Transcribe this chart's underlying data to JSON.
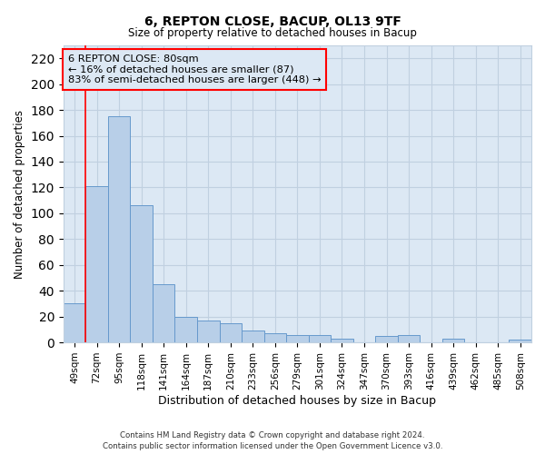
{
  "title": "6, REPTON CLOSE, BACUP, OL13 9TF",
  "subtitle": "Size of property relative to detached houses in Bacup",
  "xlabel": "Distribution of detached houses by size in Bacup",
  "ylabel": "Number of detached properties",
  "bar_labels": [
    "49sqm",
    "72sqm",
    "95sqm",
    "118sqm",
    "141sqm",
    "164sqm",
    "187sqm",
    "210sqm",
    "233sqm",
    "256sqm",
    "279sqm",
    "301sqm",
    "324sqm",
    "347sqm",
    "370sqm",
    "393sqm",
    "416sqm",
    "439sqm",
    "462sqm",
    "485sqm",
    "508sqm"
  ],
  "bar_values": [
    30,
    121,
    175,
    106,
    45,
    20,
    17,
    15,
    9,
    7,
    6,
    6,
    3,
    0,
    5,
    6,
    0,
    3,
    0,
    0,
    2
  ],
  "ylim": [
    0,
    230
  ],
  "yticks": [
    0,
    20,
    40,
    60,
    80,
    100,
    120,
    140,
    160,
    180,
    200,
    220
  ],
  "bar_color": "#b8cfe8",
  "bar_edge_color": "#6699cc",
  "grid_color": "#c0d0e0",
  "plot_bg_color": "#dce8f4",
  "fig_bg_color": "#ffffff",
  "red_line_x": 0.5,
  "annotation_title": "6 REPTON CLOSE: 80sqm",
  "annotation_line1": "← 16% of detached houses are smaller (87)",
  "annotation_line2": "83% of semi-detached houses are larger (448) →",
  "footer1": "Contains HM Land Registry data © Crown copyright and database right 2024.",
  "footer2": "Contains public sector information licensed under the Open Government Licence v3.0."
}
